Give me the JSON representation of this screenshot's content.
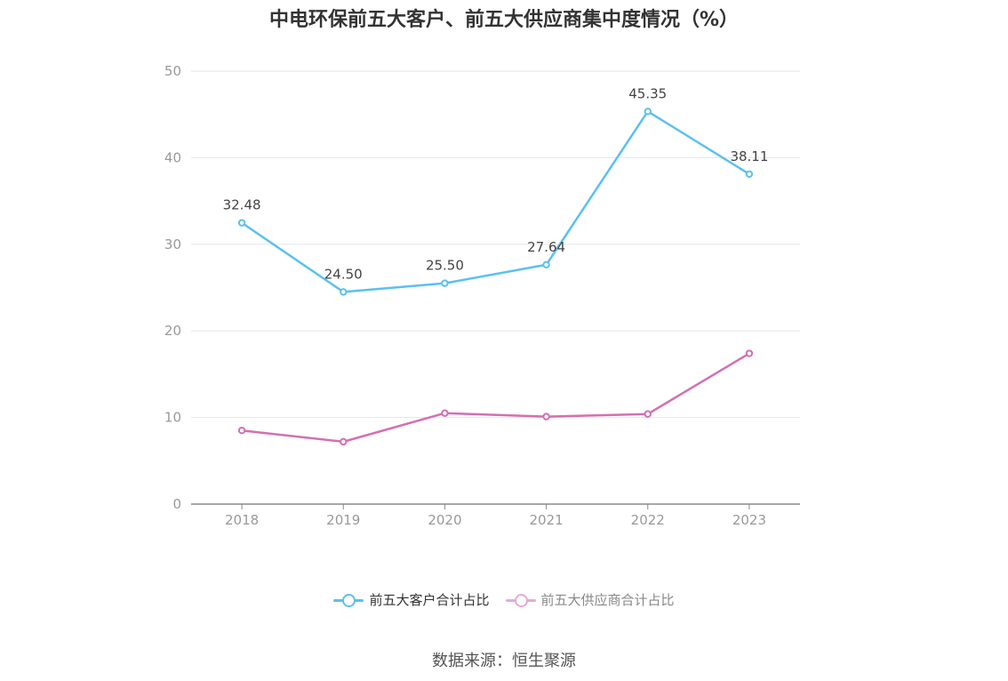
{
  "chart_data": {
    "type": "line",
    "title": "中电环保前五大客户、前五大供应商集中度情况（%）",
    "categories": [
      "2018",
      "2019",
      "2020",
      "2021",
      "2022",
      "2023"
    ],
    "series": [
      {
        "name": "前五大客户合计占比",
        "values": [
          32.48,
          24.5,
          25.5,
          27.64,
          45.35,
          38.11
        ],
        "labels": [
          "32.48",
          "24.50",
          "25.50",
          "27.64",
          "45.35",
          "38.11"
        ],
        "color": "#5bc0f0",
        "show_labels": true
      },
      {
        "name": "前五大供应商合计占比",
        "values": [
          8.5,
          7.2,
          10.5,
          10.1,
          10.4,
          17.4
        ],
        "color": "#d46fb3",
        "show_labels": false
      }
    ],
    "yticks": [
      "0",
      "10",
      "20",
      "30",
      "40",
      "50"
    ],
    "ylim": [
      0,
      50
    ],
    "grid": true,
    "legend_position": "bottom",
    "xlabel": "",
    "ylabel": ""
  },
  "legend": {
    "items": [
      {
        "label": "前五大客户合计占比",
        "color": "#5bc0f0",
        "text_color": "#333333"
      },
      {
        "label": "前五大供应商合计占比",
        "color": "#e9a9d4",
        "text_color": "#888888"
      }
    ]
  },
  "source": "数据来源：恒生聚源"
}
